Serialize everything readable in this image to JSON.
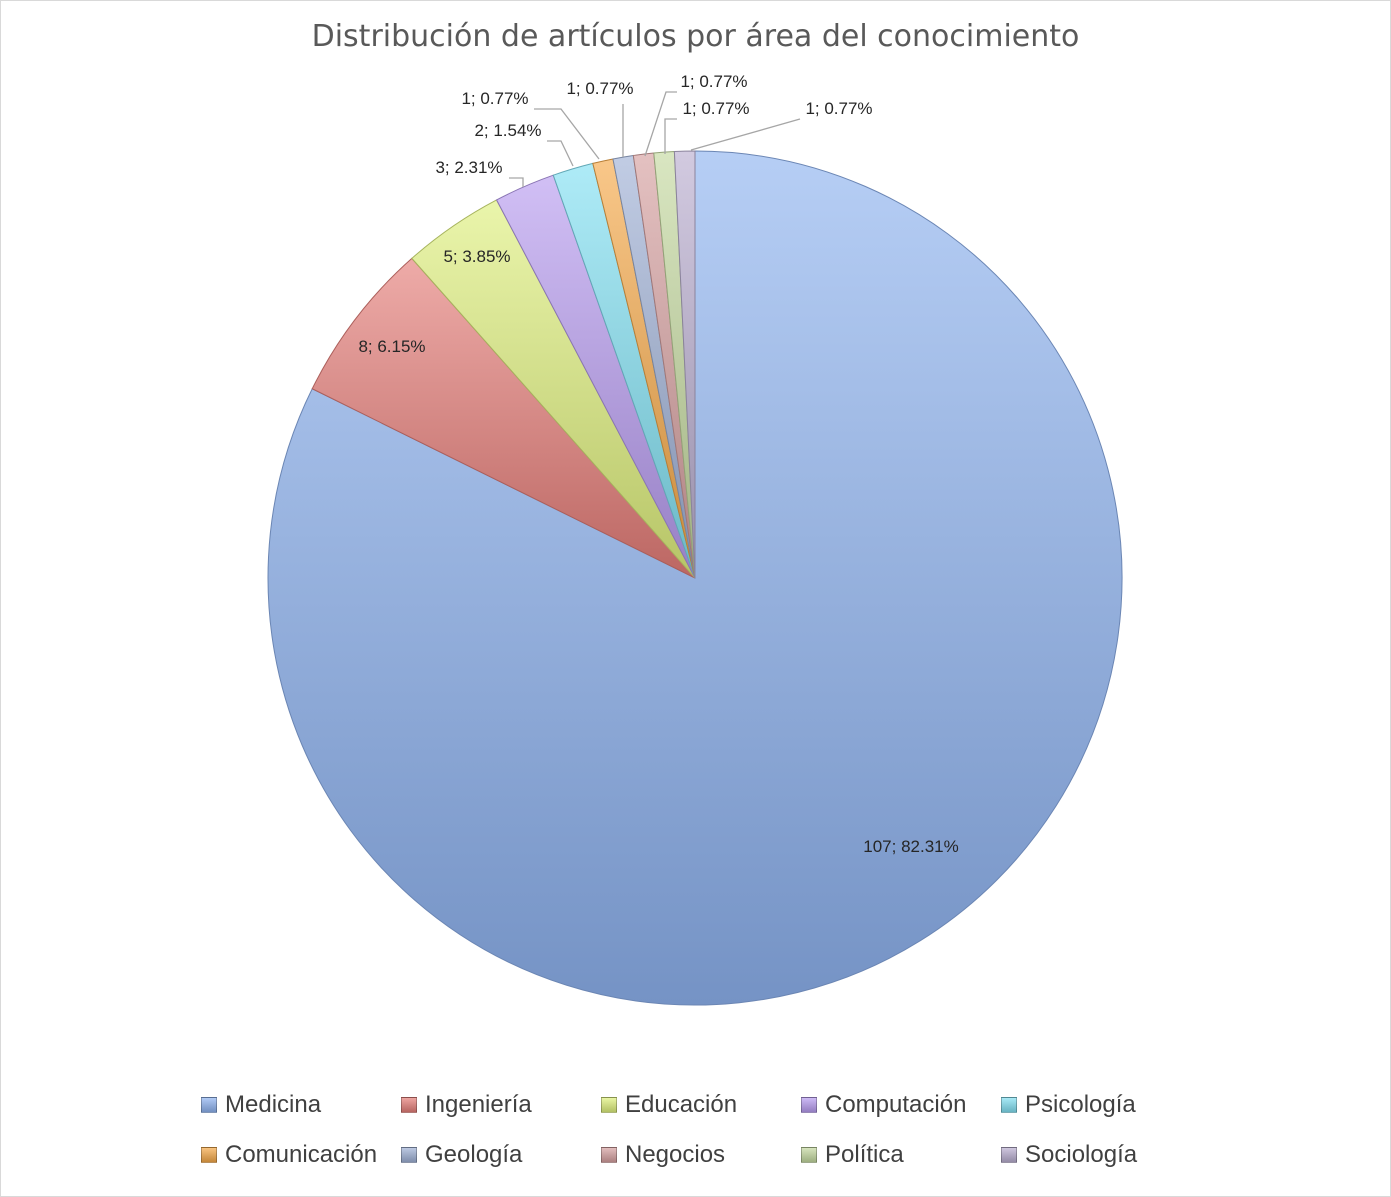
{
  "chart_data": {
    "type": "pie",
    "title": "Distribución de artículos por área del conocimiento",
    "start_angle_deg": 0,
    "direction": "clockwise",
    "slices": [
      {
        "name": "Medicina",
        "value": 107,
        "percent": "82.31%",
        "label": "107; 82.31%",
        "color": "#8fb3f0"
      },
      {
        "name": "Ingeniería",
        "value": 8,
        "percent": "6.15%",
        "label": "8; 6.15%",
        "color": "#e57e79"
      },
      {
        "name": "Educación",
        "value": 5,
        "percent": "3.85%",
        "label": "5; 3.85%",
        "color": "#dff07d"
      },
      {
        "name": "Computación",
        "value": 3,
        "percent": "2.31%",
        "label": "3; 2.31%",
        "color": "#b89cf0"
      },
      {
        "name": "Psicología",
        "value": 2,
        "percent": "1.54%",
        "label": "2; 1.54%",
        "color": "#82e0f2"
      },
      {
        "name": "Comunicación",
        "value": 1,
        "percent": "0.77%",
        "label": "1; 0.77%",
        "color": "#f5a949"
      },
      {
        "name": "Geología",
        "value": 1,
        "percent": "0.77%",
        "label": "1; 0.77%",
        "color": "#9fb1d6"
      },
      {
        "name": "Negocios",
        "value": 1,
        "percent": "0.77%",
        "label": "1; 0.77%",
        "color": "#d6a0a0"
      },
      {
        "name": "Política",
        "value": 1,
        "percent": "0.77%",
        "label": "1; 0.77%",
        "color": "#c4d9a0"
      },
      {
        "name": "Sociología",
        "value": 1,
        "percent": "0.77%",
        "label": "1; 0.77%",
        "color": "#b9aed0"
      }
    ],
    "legend_position": "bottom"
  }
}
